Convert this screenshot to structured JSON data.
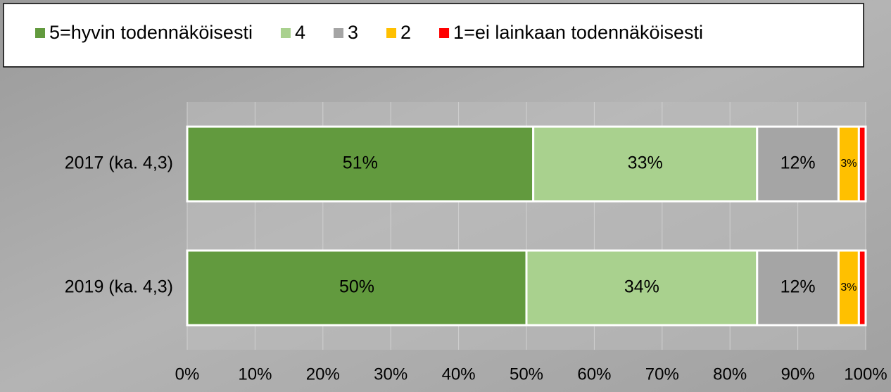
{
  "chart_data": {
    "type": "stacked-bar-horizontal",
    "categories": [
      "2017  (ka. 4,3)",
      "2019 (ka. 4,3)"
    ],
    "series": [
      {
        "name": "5=hyvin todennäköisesti",
        "color": "#629a3e",
        "values": [
          51,
          50
        ],
        "value_labels": [
          "51%",
          "50%"
        ]
      },
      {
        "name": "4",
        "color": "#a9d18e",
        "values": [
          33,
          34
        ],
        "value_labels": [
          "33%",
          "34%"
        ]
      },
      {
        "name": "3",
        "color": "#a5a5a5",
        "values": [
          12,
          12
        ],
        "value_labels": [
          "12%",
          "12%"
        ]
      },
      {
        "name": "2",
        "color": "#ffc000",
        "values": [
          3,
          3
        ],
        "value_labels": [
          "3%",
          "3%"
        ]
      },
      {
        "name": "1=ei lainkaan todennäköisesti",
        "color": "#ff0000",
        "values": [
          1,
          1
        ],
        "value_labels": [
          null,
          null
        ]
      }
    ],
    "xlim": [
      0,
      100
    ],
    "xticks": [
      {
        "value": 0,
        "label": "0%"
      },
      {
        "value": 10,
        "label": "10%"
      },
      {
        "value": 20,
        "label": "20%"
      },
      {
        "value": 30,
        "label": "30%"
      },
      {
        "value": 40,
        "label": "40%"
      },
      {
        "value": 50,
        "label": "50%"
      },
      {
        "value": 60,
        "label": "60%"
      },
      {
        "value": 70,
        "label": "70%"
      },
      {
        "value": 80,
        "label": "80%"
      },
      {
        "value": 90,
        "label": "90%"
      },
      {
        "value": 100,
        "label": "100%"
      }
    ],
    "grid": true,
    "legend": "top"
  }
}
